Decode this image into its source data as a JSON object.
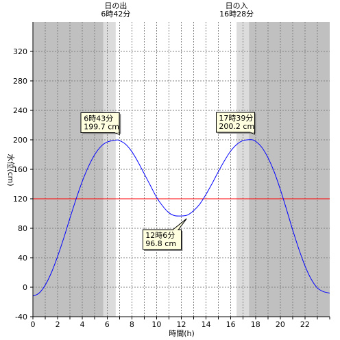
{
  "chart_data": {
    "type": "line",
    "xlabel": "時間(h)",
    "ylabel": "水位(cm)",
    "xlim": [
      0,
      24
    ],
    "ylim": [
      -40,
      360
    ],
    "x_ticks": [
      0,
      2,
      4,
      6,
      8,
      10,
      12,
      14,
      16,
      18,
      20,
      22
    ],
    "x_tick_labels": [
      "0",
      "2",
      "4",
      "6",
      "8",
      "10",
      "12",
      "14",
      "16",
      "18",
      "20",
      "22"
    ],
    "y_ticks": [
      -40,
      0,
      40,
      80,
      120,
      160,
      200,
      240,
      280,
      320
    ],
    "y_tick_labels": [
      "-40",
      "0",
      "40",
      "80",
      "120",
      "160",
      "200",
      "240",
      "280",
      "320"
    ],
    "grid": true,
    "sunrise": {
      "label": "日の出",
      "time_label": "6時42分",
      "hour": 6.7
    },
    "sunset": {
      "label": "日の入",
      "time_label": "16時28分",
      "hour": 16.467
    },
    "reference_line": {
      "y": 120,
      "color": "#ff0000"
    },
    "series": [
      {
        "color": "#0000ff",
        "x": [
          0,
          0.5,
          1,
          1.5,
          2,
          2.5,
          3,
          3.5,
          4,
          4.5,
          5,
          5.5,
          6,
          6.72,
          7,
          7.5,
          8,
          8.5,
          9,
          9.5,
          10,
          10.5,
          11,
          11.5,
          12.1,
          12.5,
          13,
          13.5,
          14,
          14.5,
          15,
          15.5,
          16,
          16.5,
          17,
          17.65,
          18,
          18.5,
          19,
          19.5,
          20,
          20.5,
          21,
          21.5,
          22,
          22.5,
          23,
          23.5,
          24
        ],
        "y": [
          -12,
          -8,
          3,
          20,
          42,
          67,
          94,
          120,
          144,
          164,
          180,
          191,
          197,
          199.7,
          199,
          194,
          184,
          170,
          154,
          138,
          122,
          110,
          101,
          97,
          96.8,
          98,
          104,
          113,
          126,
          141,
          157,
          172,
          185,
          194,
          199,
          200.2,
          198,
          190,
          176,
          157,
          133,
          106,
          78,
          52,
          29,
          11,
          -1,
          -6,
          -8
        ]
      }
    ],
    "annotations": [
      {
        "time": "6時43分",
        "value": "199.7 cm",
        "x": 6.72,
        "y": 199.7
      },
      {
        "time": "12時6分",
        "value": "96.8 cm",
        "x": 12.1,
        "y": 96.8
      },
      {
        "time": "17時39分",
        "value": "200.2 cm",
        "x": 17.65,
        "y": 200.2
      }
    ]
  }
}
